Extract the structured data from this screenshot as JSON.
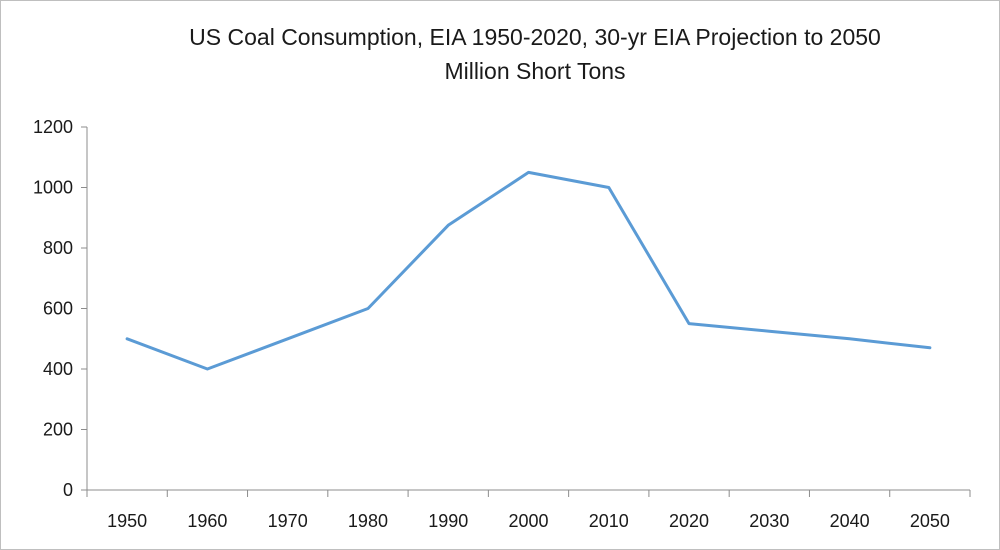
{
  "chart_data": {
    "type": "line",
    "title": "US Coal Consumption, EIA 1950-2020, 30-yr EIA Projection to 2050",
    "subtitle": "Million Short Tons",
    "xlabel": "",
    "ylabel": "",
    "categories": [
      "1950",
      "1960",
      "1970",
      "1980",
      "1990",
      "2000",
      "2010",
      "2020",
      "2030",
      "2040",
      "2050"
    ],
    "series": [
      {
        "values": [
          500,
          400,
          500,
          600,
          875,
          1050,
          1000,
          550,
          525,
          500,
          470
        ],
        "color": "#5b9bd5"
      }
    ],
    "ylim": [
      0,
      1200
    ],
    "yticks": [
      0,
      200,
      400,
      600,
      800,
      1000,
      1200
    ],
    "grid": false,
    "legend": "none"
  }
}
